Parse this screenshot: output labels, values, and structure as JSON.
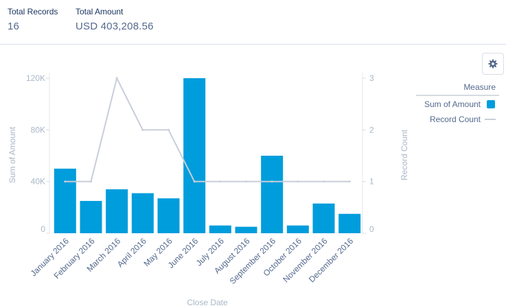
{
  "summary": {
    "total_records_label": "Total Records",
    "total_records_value": "16",
    "total_amount_label": "Total Amount",
    "total_amount_value": "USD 403,208.56"
  },
  "settings_icon": "gear-icon",
  "colors": {
    "bar": "#009ddc",
    "line": "#c8ced9",
    "axis_text": "#a8b7c7",
    "label_text": "#54698d"
  },
  "chart_data": {
    "type": "bar",
    "xlabel": "Close Date",
    "ylabel": "Sum of Amount",
    "y2label": "Record Count",
    "categories": [
      "January 2016",
      "February 2016",
      "March 2016",
      "April 2016",
      "May 2016",
      "June 2016",
      "July 2016",
      "August 2016",
      "September 2016",
      "October 2016",
      "November 2016",
      "December 2016"
    ],
    "series": [
      {
        "name": "Sum of Amount",
        "type": "bar",
        "axis": "left",
        "values": [
          50000,
          25000,
          34000,
          31000,
          27000,
          120000,
          6000,
          5000,
          60000,
          6000,
          23000,
          15000
        ]
      },
      {
        "name": "Record Count",
        "type": "line",
        "axis": "right",
        "values": [
          1,
          1,
          3,
          2,
          2,
          1,
          1,
          1,
          1,
          1,
          1,
          1
        ]
      }
    ],
    "ylim": [
      0,
      120000
    ],
    "yticks": [
      "0",
      "40K",
      "80K",
      "120K"
    ],
    "y2lim": [
      0,
      3
    ],
    "y2ticks": [
      "0",
      "1",
      "2",
      "3"
    ],
    "legend": {
      "title": "Measure",
      "position": "right",
      "items": [
        "Sum of Amount",
        "Record Count"
      ]
    }
  }
}
